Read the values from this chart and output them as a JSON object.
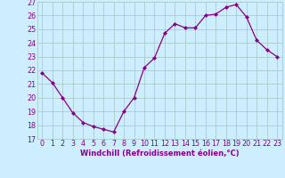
{
  "x": [
    0,
    1,
    2,
    3,
    4,
    5,
    6,
    7,
    8,
    9,
    10,
    11,
    12,
    13,
    14,
    15,
    16,
    17,
    18,
    19,
    20,
    21,
    22,
    23
  ],
  "y": [
    21.8,
    21.1,
    20.0,
    18.9,
    18.2,
    17.9,
    17.7,
    17.5,
    19.0,
    20.0,
    22.2,
    22.9,
    24.7,
    25.4,
    25.1,
    25.1,
    26.0,
    26.1,
    26.6,
    26.8,
    25.9,
    24.2,
    23.5,
    23.0
  ],
  "line_color": "#880088",
  "marker": "D",
  "marker_size": 2.0,
  "linewidth": 0.9,
  "bg_color": "#cceeff",
  "grid_color": "#aacccc",
  "xlabel": "Windchill (Refroidissement éolien,°C)",
  "ylabel": "",
  "ylim": [
    17,
    27
  ],
  "xlim": [
    -0.5,
    23.5
  ],
  "yticks": [
    17,
    18,
    19,
    20,
    21,
    22,
    23,
    24,
    25,
    26,
    27
  ],
  "xticks": [
    0,
    1,
    2,
    3,
    4,
    5,
    6,
    7,
    8,
    9,
    10,
    11,
    12,
    13,
    14,
    15,
    16,
    17,
    18,
    19,
    20,
    21,
    22,
    23
  ],
  "xlabel_color": "#880088",
  "tick_color": "#880088",
  "label_fontsize": 6.0,
  "tick_fontsize": 5.8
}
